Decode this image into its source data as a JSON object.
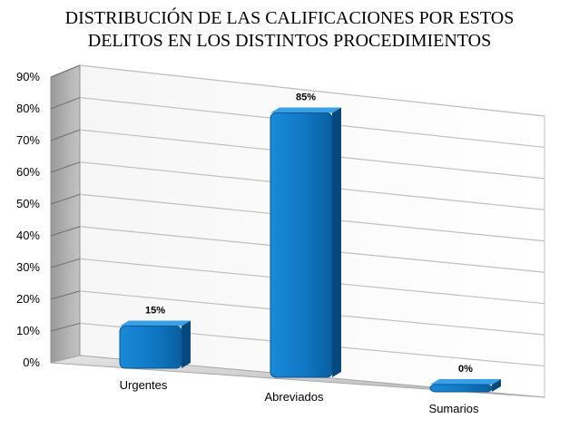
{
  "chart_data": {
    "type": "bar",
    "title_lines": [
      "DISTRIBUCIÓN DE LAS CALIFICACIONES POR ESTOS",
      "DELITOS EN  LOS DISTINTOS PROCEDIMIENTOS"
    ],
    "categories": [
      "Urgentes",
      "Abreviados",
      "Sumarios"
    ],
    "values": [
      15,
      85,
      0
    ],
    "data_labels": [
      "15%",
      "85%",
      "0%"
    ],
    "ylim": [
      0,
      90
    ],
    "yticks": [
      "0%",
      "10%",
      "20%",
      "30%",
      "40%",
      "50%",
      "60%",
      "70%",
      "80%",
      "90%"
    ],
    "grid": true,
    "style": "3d-column",
    "bar_color": "#0f78c4"
  }
}
